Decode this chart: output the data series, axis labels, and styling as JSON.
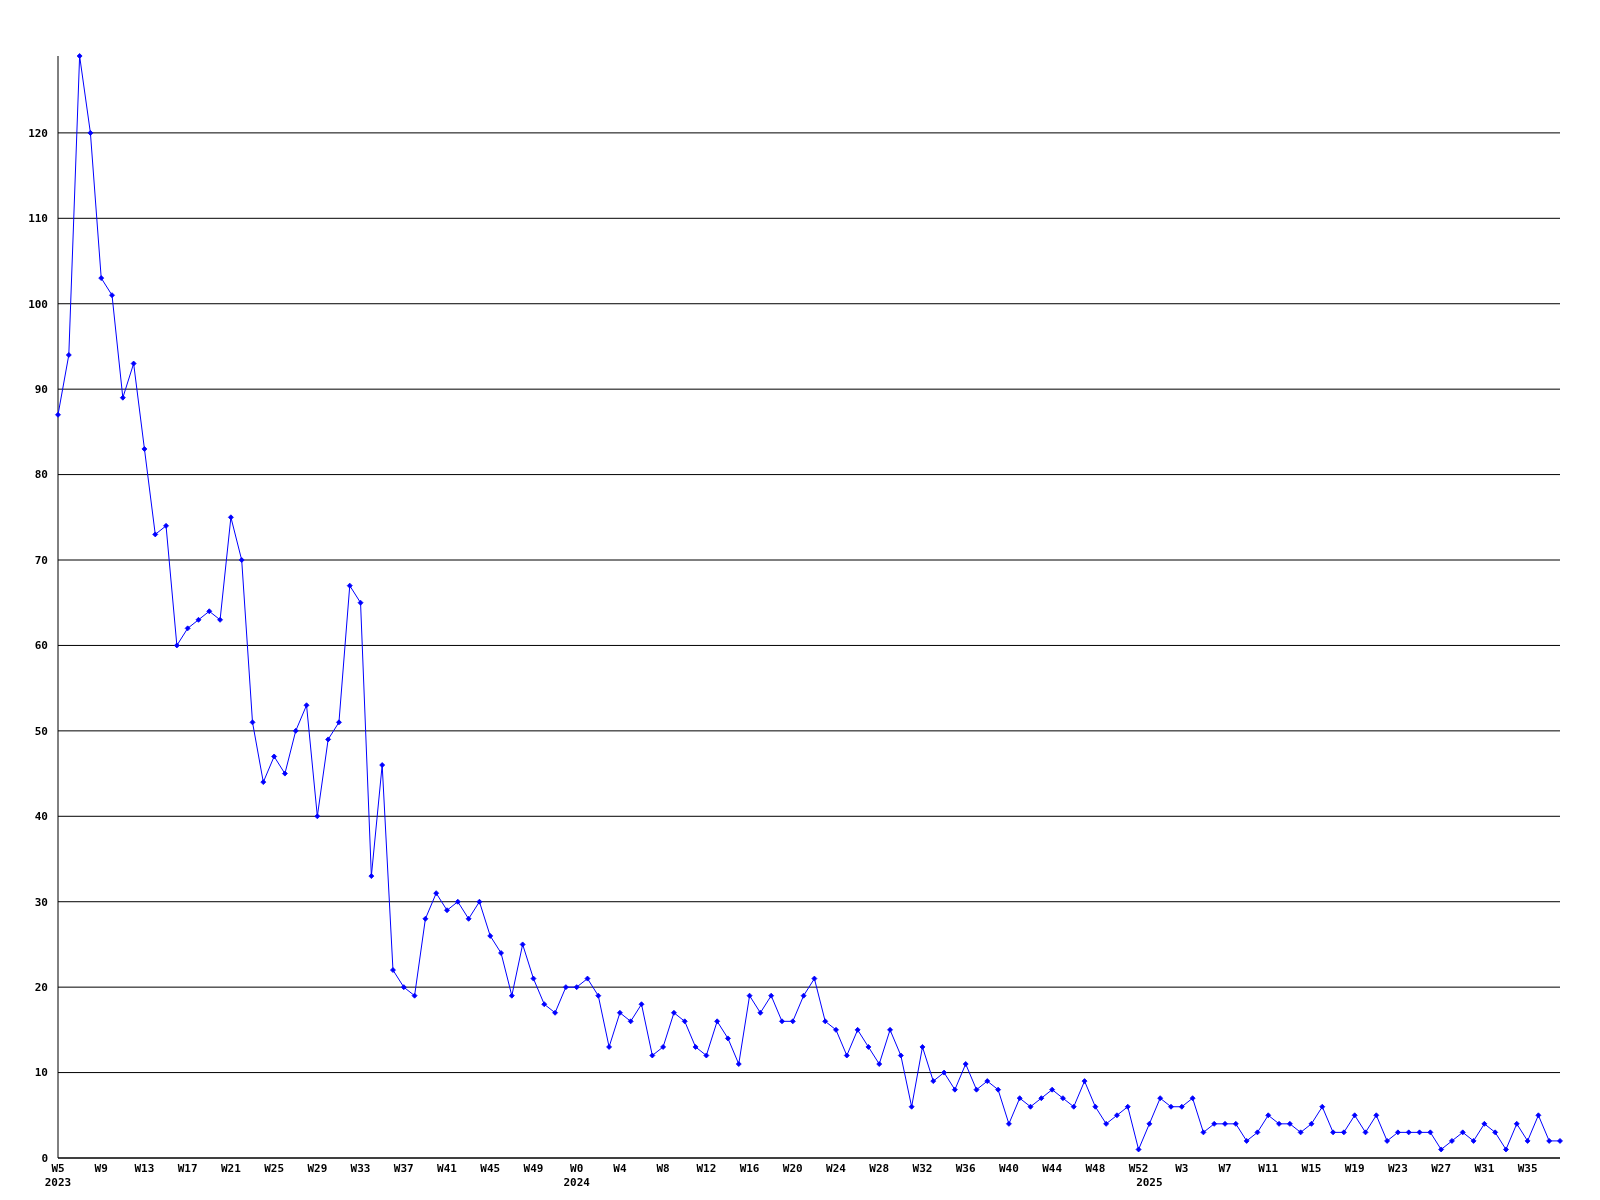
{
  "chart_data": {
    "type": "line",
    "categories": [
      "W5\n2023",
      null,
      null,
      null,
      "W9",
      null,
      null,
      null,
      "W13",
      null,
      null,
      null,
      "W17",
      null,
      null,
      null,
      "W21",
      null,
      null,
      null,
      "W25",
      null,
      null,
      null,
      "W29",
      null,
      null,
      null,
      "W33",
      null,
      null,
      null,
      "W37",
      null,
      null,
      null,
      "W41",
      null,
      null,
      null,
      "W45",
      null,
      null,
      null,
      "W49",
      null,
      null,
      null,
      "W0\n2024",
      null,
      null,
      null,
      "W4",
      null,
      null,
      null,
      "W8",
      null,
      null,
      null,
      "W12",
      null,
      null,
      null,
      "W16",
      null,
      null,
      null,
      "W20",
      null,
      null,
      null,
      "W24",
      null,
      null,
      null,
      "W28",
      null,
      null,
      null,
      "W32",
      null,
      null,
      null,
      "W36",
      null,
      null,
      null,
      "W40",
      null,
      null,
      null,
      "W44",
      null,
      null,
      null,
      "W48",
      null,
      null,
      null,
      "W52",
      "\n2025",
      null,
      null,
      "W3",
      null,
      null,
      null,
      "W7",
      null,
      null,
      null,
      "W11",
      null,
      null,
      null,
      "W15",
      null,
      null,
      null,
      "W19",
      null,
      null,
      null,
      "W23",
      null,
      null,
      null,
      "W27",
      null,
      null,
      null,
      "W31",
      null,
      null,
      null,
      "W35",
      null,
      null,
      null
    ],
    "series": [
      {
        "color": "#0000ff",
        "values": [
          87,
          94,
          129,
          120,
          103,
          101,
          89,
          93,
          83,
          73,
          74,
          60,
          62,
          63,
          64,
          63,
          75,
          70,
          51,
          44,
          47,
          45,
          50,
          53,
          40,
          49,
          51,
          67,
          65,
          33,
          46,
          22,
          20,
          19,
          28,
          31,
          29,
          30,
          28,
          30,
          26,
          24,
          19,
          25,
          21,
          18,
          17,
          20,
          20,
          21,
          19,
          13,
          17,
          16,
          18,
          12,
          13,
          17,
          16,
          13,
          12,
          16,
          14,
          11,
          19,
          17,
          19,
          16,
          16,
          19,
          21,
          16,
          15,
          12,
          15,
          13,
          11,
          15,
          12,
          6,
          13,
          9,
          10,
          8,
          11,
          8,
          9,
          8,
          4,
          7,
          6,
          7,
          8,
          7,
          6,
          9,
          6,
          4,
          5,
          6,
          1,
          4,
          7,
          6,
          6,
          7,
          3,
          4,
          4,
          4,
          2,
          3,
          5,
          4,
          4,
          3,
          4,
          6,
          3,
          3,
          5,
          3,
          5,
          2,
          3,
          3,
          3,
          3,
          1,
          2,
          3,
          2,
          4,
          3,
          1,
          4,
          2,
          5,
          2,
          2
        ]
      }
    ],
    "ylim": [
      0,
      129
    ],
    "yticks": [
      0,
      10,
      20,
      30,
      40,
      50,
      60,
      70,
      80,
      90,
      100,
      110,
      120
    ],
    "grid": "y",
    "marker": "diamond",
    "line_style": "solid"
  }
}
